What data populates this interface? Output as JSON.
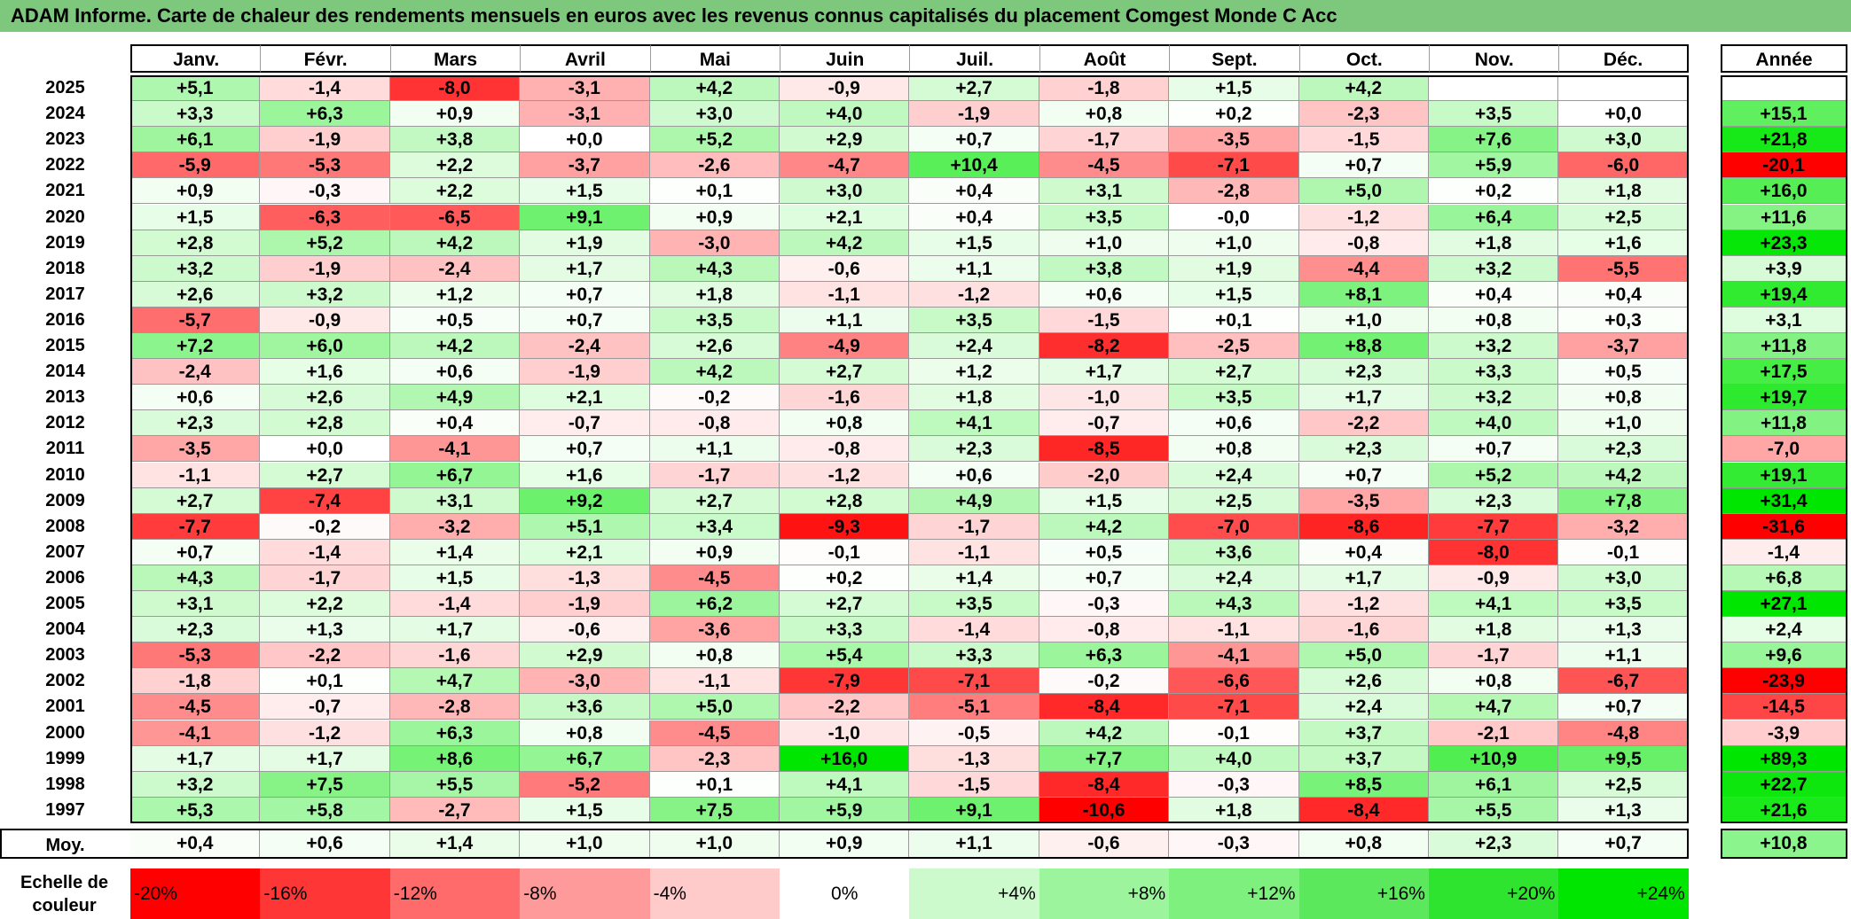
{
  "title": "ADAM Informe. Carte de chaleur des rendements mensuels en euros avec les revenus connus capitalisés du placement Comgest Monde C Acc",
  "months": [
    "Janv.",
    "Févr.",
    "Mars",
    "Avril",
    "Mai",
    "Juin",
    "Juil.",
    "Août",
    "Sept.",
    "Oct.",
    "Nov.",
    "Déc."
  ],
  "year_header": "Année",
  "avg_label": "Moy.",
  "legend_label": "Echelle de couleur",
  "legend": [
    "-20%",
    "-16%",
    "-12%",
    "-8%",
    "-4%",
    "0%",
    "+4%",
    "+8%",
    "+12%",
    "+16%",
    "+20%",
    "+24%"
  ],
  "chart_data": {
    "type": "heatmap",
    "title": "ADAM Informe. Carte de chaleur des rendements mensuels en euros avec les revenus connus capitalisés du placement Comgest Monde C Acc",
    "columns": [
      "Janv.",
      "Févr.",
      "Mars",
      "Avril",
      "Mai",
      "Juin",
      "Juil.",
      "Août",
      "Sept.",
      "Oct.",
      "Nov.",
      "Déc."
    ],
    "rows": [
      {
        "year": "2025",
        "months": [
          "+5,1",
          "-1,4",
          "-8,0",
          "-3,1",
          "+4,2",
          "-0,9",
          "+2,7",
          "-1,8",
          "+1,5",
          "+4,2",
          "",
          ""
        ],
        "annual": ""
      },
      {
        "year": "2024",
        "months": [
          "+3,3",
          "+6,3",
          "+0,9",
          "-3,1",
          "+3,0",
          "+4,0",
          "-1,9",
          "+0,8",
          "+0,2",
          "-2,3",
          "+3,5",
          "+0,0"
        ],
        "annual": "+15,1"
      },
      {
        "year": "2023",
        "months": [
          "+6,1",
          "-1,9",
          "+3,8",
          "+0,0",
          "+5,2",
          "+2,9",
          "+0,7",
          "-1,7",
          "-3,5",
          "-1,5",
          "+7,6",
          "+3,0"
        ],
        "annual": "+21,8"
      },
      {
        "year": "2022",
        "months": [
          "-5,9",
          "-5,3",
          "+2,2",
          "-3,7",
          "-2,6",
          "-4,7",
          "+10,4",
          "-4,5",
          "-7,1",
          "+0,7",
          "+5,9",
          "-6,0"
        ],
        "annual": "-20,1"
      },
      {
        "year": "2021",
        "months": [
          "+0,9",
          "-0,3",
          "+2,2",
          "+1,5",
          "+0,1",
          "+3,0",
          "+0,4",
          "+3,1",
          "-2,8",
          "+5,0",
          "+0,2",
          "+1,8"
        ],
        "annual": "+16,0"
      },
      {
        "year": "2020",
        "months": [
          "+1,5",
          "-6,3",
          "-6,5",
          "+9,1",
          "+0,9",
          "+2,1",
          "+0,4",
          "+3,5",
          "-0,0",
          "-1,2",
          "+6,4",
          "+2,5"
        ],
        "annual": "+11,6"
      },
      {
        "year": "2019",
        "months": [
          "+2,8",
          "+5,2",
          "+4,2",
          "+1,9",
          "-3,0",
          "+4,2",
          "+1,5",
          "+1,0",
          "+1,0",
          "-0,8",
          "+1,8",
          "+1,6"
        ],
        "annual": "+23,3"
      },
      {
        "year": "2018",
        "months": [
          "+3,2",
          "-1,9",
          "-2,4",
          "+1,7",
          "+4,3",
          "-0,6",
          "+1,1",
          "+3,8",
          "+1,9",
          "-4,4",
          "+3,2",
          "-5,5"
        ],
        "annual": "+3,9"
      },
      {
        "year": "2017",
        "months": [
          "+2,6",
          "+3,2",
          "+1,2",
          "+0,7",
          "+1,8",
          "-1,1",
          "-1,2",
          "+0,6",
          "+1,5",
          "+8,1",
          "+0,4",
          "+0,4"
        ],
        "annual": "+19,4"
      },
      {
        "year": "2016",
        "months": [
          "-5,7",
          "-0,9",
          "+0,5",
          "+0,7",
          "+3,5",
          "+1,1",
          "+3,5",
          "-1,5",
          "+0,1",
          "+1,0",
          "+0,8",
          "+0,3"
        ],
        "annual": "+3,1"
      },
      {
        "year": "2015",
        "months": [
          "+7,2",
          "+6,0",
          "+4,2",
          "-2,4",
          "+2,6",
          "-4,9",
          "+2,4",
          "-8,2",
          "-2,5",
          "+8,8",
          "+3,2",
          "-3,7"
        ],
        "annual": "+11,8"
      },
      {
        "year": "2014",
        "months": [
          "-2,4",
          "+1,6",
          "+0,6",
          "-1,9",
          "+4,2",
          "+2,7",
          "+1,2",
          "+1,7",
          "+2,7",
          "+2,3",
          "+3,3",
          "+0,5"
        ],
        "annual": "+17,5"
      },
      {
        "year": "2013",
        "months": [
          "+0,6",
          "+2,6",
          "+4,9",
          "+2,1",
          "-0,2",
          "-1,6",
          "+1,8",
          "-1,0",
          "+3,5",
          "+1,7",
          "+3,2",
          "+0,8"
        ],
        "annual": "+19,7"
      },
      {
        "year": "2012",
        "months": [
          "+2,3",
          "+2,8",
          "+0,4",
          "-0,7",
          "-0,8",
          "+0,8",
          "+4,1",
          "-0,7",
          "+0,6",
          "-2,2",
          "+4,0",
          "+1,0"
        ],
        "annual": "+11,8"
      },
      {
        "year": "2011",
        "months": [
          "-3,5",
          "+0,0",
          "-4,1",
          "+0,7",
          "+1,1",
          "-0,8",
          "+2,3",
          "-8,5",
          "+0,8",
          "+2,3",
          "+0,7",
          "+2,3"
        ],
        "annual": "-7,0"
      },
      {
        "year": "2010",
        "months": [
          "-1,1",
          "+2,7",
          "+6,7",
          "+1,6",
          "-1,7",
          "-1,2",
          "+0,6",
          "-2,0",
          "+2,4",
          "+0,7",
          "+5,2",
          "+4,2"
        ],
        "annual": "+19,1"
      },
      {
        "year": "2009",
        "months": [
          "+2,7",
          "-7,4",
          "+3,1",
          "+9,2",
          "+2,7",
          "+2,8",
          "+4,9",
          "+1,5",
          "+2,5",
          "-3,5",
          "+2,3",
          "+7,8"
        ],
        "annual": "+31,4"
      },
      {
        "year": "2008",
        "months": [
          "-7,7",
          "-0,2",
          "-3,2",
          "+5,1",
          "+3,4",
          "-9,3",
          "-1,7",
          "+4,2",
          "-7,0",
          "-8,6",
          "-7,7",
          "-3,2"
        ],
        "annual": "-31,6"
      },
      {
        "year": "2007",
        "months": [
          "+0,7",
          "-1,4",
          "+1,4",
          "+2,1",
          "+0,9",
          "-0,1",
          "-1,1",
          "+0,5",
          "+3,6",
          "+0,4",
          "-8,0",
          "-0,1"
        ],
        "annual": "-1,4"
      },
      {
        "year": "2006",
        "months": [
          "+4,3",
          "-1,7",
          "+1,5",
          "-1,3",
          "-4,5",
          "+0,2",
          "+1,4",
          "+0,7",
          "+2,4",
          "+1,7",
          "-0,9",
          "+3,0"
        ],
        "annual": "+6,8"
      },
      {
        "year": "2005",
        "months": [
          "+3,1",
          "+2,2",
          "-1,4",
          "-1,9",
          "+6,2",
          "+2,7",
          "+3,5",
          "-0,3",
          "+4,3",
          "-1,2",
          "+4,1",
          "+3,5"
        ],
        "annual": "+27,1"
      },
      {
        "year": "2004",
        "months": [
          "+2,3",
          "+1,3",
          "+1,7",
          "-0,6",
          "-3,6",
          "+3,3",
          "-1,4",
          "-0,8",
          "-1,1",
          "-1,6",
          "+1,8",
          "+1,3"
        ],
        "annual": "+2,4"
      },
      {
        "year": "2003",
        "months": [
          "-5,3",
          "-2,2",
          "-1,6",
          "+2,9",
          "+0,8",
          "+5,4",
          "+3,3",
          "+6,3",
          "-4,1",
          "+5,0",
          "-1,7",
          "+1,1"
        ],
        "annual": "+9,6"
      },
      {
        "year": "2002",
        "months": [
          "-1,8",
          "+0,1",
          "+4,7",
          "-3,0",
          "-1,1",
          "-7,9",
          "-7,1",
          "-0,2",
          "-6,6",
          "+2,6",
          "+0,8",
          "-6,7"
        ],
        "annual": "-23,9"
      },
      {
        "year": "2001",
        "months": [
          "-4,5",
          "-0,7",
          "-2,8",
          "+3,6",
          "+5,0",
          "-2,2",
          "-5,1",
          "-8,4",
          "-7,1",
          "+2,4",
          "+4,7",
          "+0,7"
        ],
        "annual": "-14,5"
      },
      {
        "year": "2000",
        "months": [
          "-4,1",
          "-1,2",
          "+6,3",
          "+0,8",
          "-4,5",
          "-1,0",
          "-0,5",
          "+4,2",
          "-0,1",
          "+3,7",
          "-2,1",
          "-4,8"
        ],
        "annual": "-3,9"
      },
      {
        "year": "1999",
        "months": [
          "+1,7",
          "+1,7",
          "+8,6",
          "+6,7",
          "-2,3",
          "+16,0",
          "-1,3",
          "+7,7",
          "+4,0",
          "+3,7",
          "+10,9",
          "+9,5"
        ],
        "annual": "+89,3"
      },
      {
        "year": "1998",
        "months": [
          "+3,2",
          "+7,5",
          "+5,5",
          "-5,2",
          "+0,1",
          "+4,1",
          "-1,5",
          "-8,4",
          "-0,3",
          "+8,5",
          "+6,1",
          "+2,5"
        ],
        "annual": "+22,7"
      },
      {
        "year": "1997",
        "months": [
          "+5,3",
          "+5,8",
          "-2,7",
          "+1,5",
          "+7,5",
          "+5,9",
          "+9,1",
          "-10,6",
          "+1,8",
          "-8,4",
          "+5,5",
          "+1,3"
        ],
        "annual": "+21,6"
      }
    ],
    "average": {
      "months": [
        "+0,4",
        "+0,6",
        "+1,4",
        "+1,0",
        "+1,0",
        "+0,9",
        "+1,1",
        "-0,6",
        "-0,3",
        "+0,8",
        "+2,3",
        "+0,7"
      ],
      "annual": "+10,8"
    },
    "color_scale": {
      "min_color": "#ff0000",
      "zero_color": "#ffffff",
      "max_color": "#00e600",
      "monthly_range": [
        -10,
        16
      ],
      "annual_range": [
        -20,
        24
      ]
    }
  }
}
